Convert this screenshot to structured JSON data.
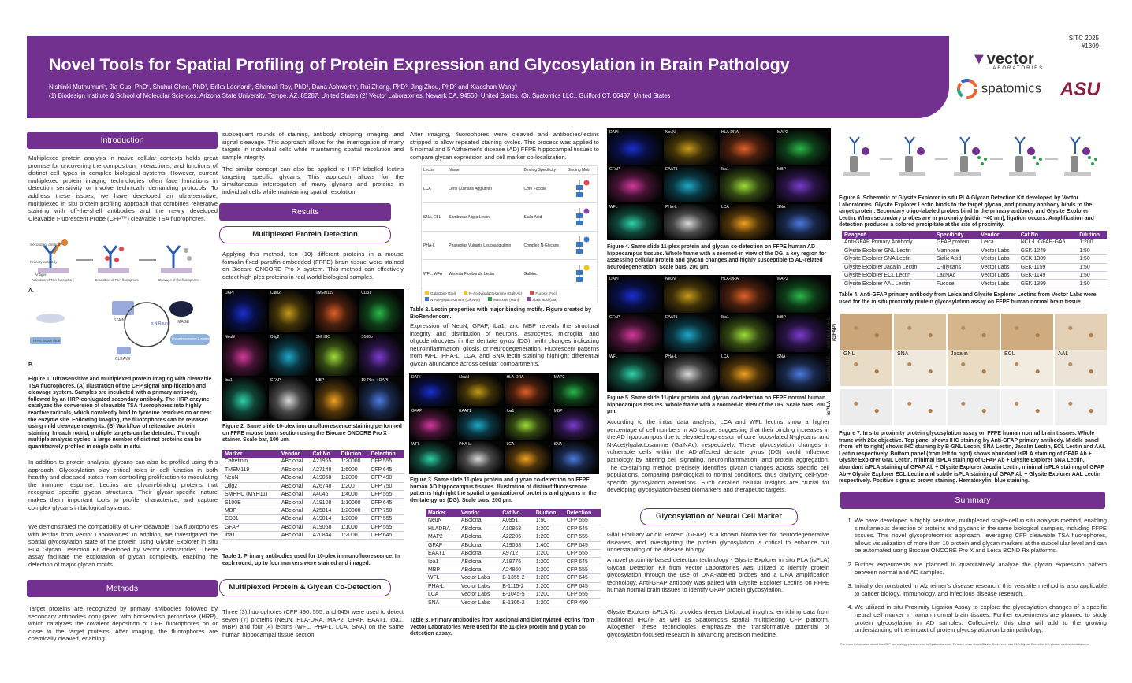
{
  "header": {
    "title": "Novel Tools for Spatial Profiling of Protein Expression and Glycosylation in Brain Pathology",
    "authors": "Nishinki Muthumuni¹, Jia Guo, PhD¹, Shuhui Chen, PhD², Erika Leonard², Shamali Roy, PhD², Dana Ashworth³, Rui Zheng, PhD³, Jing Zhou, PhD³ and Xiaoshan Wang³",
    "affiliations": "(1) Biodesign Institute & School of Molecular Sciences, Arizona State University, Tempe, AZ, 85287, United States (2) Vector Laboratories, Newark CA, 94560, United States, (3). Spatomics LLC., Guilford CT, 06437, United States",
    "conf": "SITC 2025",
    "poster_no": "#1309",
    "logo_vector": "vector",
    "logo_vector_sub": "LABORATORIES",
    "logo_spatomics": "spatomics",
    "logo_asu": "ASU"
  },
  "intro": {
    "heading": "Introduction",
    "p1": "Multiplexed protein analysis in native cellular contexts holds great promise for uncovering the composition, interactions, and functions of distinct cell types in complex biological systems. However, current multiplexed protein imaging technologies often face limitations in detection sensitivity or involve technically demanding protocols. To address these issues, we have developed an ultra-sensitive, multiplexed in situ protein profiling approach that combines reiterative staining with off-the-shelf antibodies and the newly developed Cleavable Fluorescent Probe (CFP™) cleavable TSA fluorophores.",
    "fig1_caption": "Figure 1. Ultrasensitive and multiplexed protein imaging with cleavable TSA fluorophores. (A) Illustration of the CFP signal amplification and cleavage system. Samples are incubated with a primary antibody, followed by an HRP-conjugated secondary antibody. The HRP enzyme catalyzes the conversion of cleavable TSA fluorophores into highly reactive radicals, which covalently bind to tyrosine residues on or near the enzyme site. Following imaging, the fluorophores can be released using mild cleavage reagents. (B) Workflow of reiterative protein staining. In each round, multiple targets can be detected. Through multiple analysis cycles, a large number of distinct proteins can be quantitatively profiled in single cells in situ.",
    "p2": "In addition to protein analysis, glycans can also be profiled using this approach. Glycosylation play critical roles in cell function in both healthy and diseased states from controlling proliferation to modulating the immune response. Lectins are glycan-binding proteins that recognize specific glycan structures. Their glycan-specific nature makes them important tools to profile, characterize, and capture complex glycans in biological systems.",
    "p3": "We demonstrated the compatibility of CFP cleavable TSA fluorophores with lectins from Vector Laboratories. In addition, we investigated the spatial glycosylation state of the protein using Glysite Explorer in situ PLA Glycan Detection Kit developed by Vector Laboratories. These assay facilitate the exploration of glycan complexity, enabling the detection of major glycan motifs.",
    "figA": "A.",
    "figB": "B.",
    "fig1_labels": {
      "ab_sec": "Secondary antibody",
      "ab_pri": "Primary antibody",
      "antigen": "Antigen",
      "step1": "Activation of TSA fluorophore",
      "step2": "Deposition of TSA fluorophore",
      "step3": "Cleavage of the fluorophore",
      "tissue": "FFPE tissue slide",
      "stain": "STAIN",
      "image": "IMAGE",
      "cleave": "CLEAVE",
      "rounds": "x N Round",
      "analysis": "Image processing & analysis"
    }
  },
  "methods": {
    "heading": "Methods",
    "p1": "Target proteins are recognized by primary antibodies followed by secondary antibodies conjugated with horseradish peroxidase (HRP), which catalyzes the covalent deposition of CFP fluorophores on or close to the target proteins. After imaging, the fluorophores are chemically cleaved, enabling",
    "p2": "subsequent rounds of staining, antibody stripping, imaging, and signal cleavage. This approach allows for the interrogation of many targets in individual cells while maintaining spatial resolution and sample integrity.",
    "p3": "The similar concept can also be applied to HRP-labelled lectins targeting specific glycans. This approach allows for the simultaneous interrogation of many glycans and proteins in individual cells while maintaining spatial resolution."
  },
  "results": {
    "heading": "Results",
    "sub1": "Multiplexed Protein Detection",
    "p1": "Applying this method, ten (10) different proteins in a mouse formalin-fixed paraffin-embedded (FFPE) brain tissue were stained on Biocare ONCORE Pro X system. This method can effectively detect high-plex proteins in real world biological samples.",
    "fig2_panels": [
      "DAPI",
      "Calb2",
      "TMEM119",
      "CD31",
      "NeuN",
      "Olig2",
      "SMHHC",
      "S100b",
      "Iba1",
      "GFAP",
      "MBP",
      "10-Plex + DAPI"
    ],
    "fig2_caption": "Figure 2. Same slide 10-plex immunofluorescence staining performed on FFPE mouse brain section using the Biocare ONCORE Pro X stainer. Scale bar, 100 μm.",
    "table1_headers": [
      "Marker",
      "Vendor",
      "Cat No.",
      "Dilution",
      "Detection"
    ],
    "table1_rows": [
      [
        "Calretinin",
        "ABclonal",
        "A21965",
        "1:20000",
        "CFP 555"
      ],
      [
        "TMEM119",
        "ABclonal",
        "A27148",
        "1:6000",
        "CFP 645"
      ],
      [
        "NeuN",
        "ABclonal",
        "A19068",
        "1:2000",
        "CFP 490"
      ],
      [
        "Olig2",
        "ABclonal",
        "A26748",
        "1:200",
        "CFP 750"
      ],
      [
        "SMHHC (MYH11)",
        "ABclonal",
        "A4046",
        "1:4000",
        "CFP 555"
      ],
      [
        "S100B",
        "ABclonal",
        "A19108",
        "1:10000",
        "CFP 645"
      ],
      [
        "MBP",
        "ABclonal",
        "A25814",
        "1:20000",
        "CFP 750"
      ],
      [
        "CD31",
        "ABclonal",
        "A19014",
        "1:2000",
        "CFP 555"
      ],
      [
        "GFAP",
        "ABclonal",
        "A19058",
        "1:1000",
        "CFP 555"
      ],
      [
        "Iba1",
        "ABclonal",
        "A20844",
        "1:2000",
        "CFP 645"
      ]
    ],
    "table1_caption": "Table 1. Primary antibodies used for 10-plex immunofluorescence. In each round, up to four markers were stained and imaged.",
    "sub2": "Multiplexed Protein & Glycan Co-Detection",
    "p2": "Three (3) fluorophores (CFP 490, 555, and 645) were used to detect seven (7) proteins (NeuN, HLA-DRA, MAP2, GFAP, EAAT1, Iba1, MBP) and four (4) lectins (WFL, PHA-L, LCA, SNA) on the same human hippocampal tissue section.",
    "p3": "After imaging, fluorophores were cleaved and antibodies/lectins stripped to allow repeated staining cycles. This process was applied to 5 normal and 5 Alzheimer's disease (AD) FFPE hippocampal tissues to compare glycan expression and cell marker co-localization.",
    "lectin_headers": [
      "Lectin",
      "Name",
      "Binding Specificity",
      "Binding Motif"
    ],
    "lectin_rows": [
      [
        "LCA",
        "Lens Culinaris Agglutinin",
        "Core Fucose"
      ],
      [
        "SNA, EBL",
        "Sambucus Nigra Lectin",
        "Sialic Acid"
      ],
      [
        "PHA-L",
        "Phaseolus Vulgaris Leucoagglutinin",
        "Complex N-Glycans"
      ],
      [
        "WFL, WFA",
        "Wisteria Floribunda Lectin",
        "GalNAc"
      ]
    ],
    "lectin_legend": [
      "Galactose (Gal)",
      "N-Acetylgalactosamine (GalNAc)",
      "Fucose (Fuc)",
      "N-Acetylglucosamine (GlcNAc)",
      "Mannose (Man)",
      "Sialic acid (Sia)"
    ],
    "table2_caption": "Table 2. Lectin properties with major binding motifs. Figure created by BioRender.com.",
    "p4": "Expression of NeuN, GFAP, Iba1, and MBP reveals the structural integrity and distribution of neurons, astrocytes, microglia, and oligodendrocytes in the dentate gyrus (DG), with changes indicating neuroinflammation, gliosis, or neurodegeneration. Fluorescent patterns from WFL, PHA-L, LCA, and SNA lectin staining highlight differential glycan abundance across cellular compartments.",
    "fig3_panels": [
      "DAPI",
      "NeuN",
      "HLA-DRA",
      "MAP2",
      "GFAP",
      "EAAT1",
      "Iba1",
      "MBP",
      "WFL",
      "PHA-L",
      "LCA",
      "SNA"
    ],
    "fig3_caption": "Figure 3. Same slide 11-plex protein and glycan co-detection on FFPE human AD hippocampus tissues. Illustration of distinct fluorescence patterns highlight the spatial organization of proteins and glycans in the dentate gyrus (DG). Scale bars, 200 μm.",
    "table3_headers": [
      "Marker",
      "Vendor",
      "Cat No.",
      "Dilution",
      "Detection"
    ],
    "table3_rows": [
      [
        "NeuN",
        "ABclonal",
        "A0951",
        "1:50",
        "CFP 555"
      ],
      [
        "HLADRA",
        "ABclonal",
        "A10863",
        "1:200",
        "CFP 645"
      ],
      [
        "MAP2",
        "ABclonal",
        "A22206",
        "1:200",
        "CFP 555"
      ],
      [
        "GFAP",
        "ABclonal",
        "A19058",
        "1:400",
        "CFP 645"
      ],
      [
        "EAAT1",
        "ABclonal",
        "A9712",
        "1:200",
        "CFP 555"
      ],
      [
        "Iba1",
        "ABclonal",
        "A19776",
        "1:200",
        "CFP 645"
      ],
      [
        "MBP",
        "ABclonal",
        "A24860",
        "1:200",
        "CFP 555"
      ],
      [
        "WFL",
        "Vector Labs",
        "B-1355-2",
        "1:200",
        "CFP 645"
      ],
      [
        "PHA-L",
        "Vector Labs",
        "B-1115-2",
        "1:200",
        "CFP 645"
      ],
      [
        "LCA",
        "Vector Labs",
        "B-1045-5",
        "1:200",
        "CFP 555"
      ],
      [
        "SNA",
        "Vector Labs",
        "B-1305-2",
        "1:200",
        "CFP 490"
      ]
    ],
    "table3_caption": "Table 3. Primary antibodies from ABclonal and biotinylated lectins from Vector Laboratories were used for the 11-plex protein and glycan co-detection assay.",
    "fig4_panels": [
      "DAPI",
      "NeuN",
      "HLA-DRA",
      "MAP2",
      "GFAP",
      "EAAT1",
      "Iba1",
      "MBP",
      "WFL",
      "PHA-L",
      "LCA",
      "SNA"
    ],
    "fig4_caption": "Figure 4. Same slide 11-plex protein and glycan co-detection on FFPE human AD hippocampus tissues. Whole frame with a zoomed-in view of the DG, a key region for assessing cellular protein and glycan changes and highly susceptible to AD-related neurodegeneration. Scale bars, 200 μm.",
    "fig5_panels": [
      "DAPI",
      "NeuN",
      "HLA-DRA",
      "MAP2",
      "GFAP",
      "EAAT1",
      "Iba1",
      "MBP",
      "WFL",
      "PHA-L",
      "LCA",
      "SNA"
    ],
    "fig5_caption": "Figure 5. Same slide 11-plex protein and glycan co-detection on FFPE normal human hippocampus tissues. Whole frame with a zoomed-in view of the DG. Scale bars, 200 μm.",
    "p5": "According to the initial data analysis, LCA and WFL lectins show a higher percentage of cell numbers in AD tissue, suggesting that their binding increases in the AD hippocampus due to elevated expression of core fucosylated N-glycans, and N-Acetylgalactosamine (GalNAc), respectively. These glycosylation changes in vulnerable cells within the AD-affected dentate gyrus (DG) could influence pathology by altering cell signaling, neuroinflammation, and protein aggregation. The co-staining method precisely identifies glycan changes across specific cell populations, comparing pathological to normal conditions, thus clarifying cell-type-specific glycosylation alterations. Such detailed cellular insights are crucial for developing glycosylation-based biomarkers and therapeutic targets.",
    "sub3": "Glycosylation of Neural Cell Marker",
    "p6": "Glial Fibrillary Acidic Protein (GFAP) is a known biomarker for neurodegenerative diseases, and investigating the protein glycosylation is critical to enhance our understanding of the disease biology.",
    "p7": "A novel proximity-based detection technology - Glysite Explorer in situ PLA (isPLA) Glycan Detection Kit from Vector Laboratories was utilized to identify protein glycosylation through the use of DNA-labeled probes and a DNA amplification technology. Anti-GFAP antibody was paired with Glysite Explorer Lectins on FFPE human normal brain tissues to identify GFAP protein glycosylation.",
    "p8": "Glysite Explorer isPLA Kit provides deeper biological insights, enriching data from traditional IHC/IF as well as Spatomics's spatial multiplexing CFP platform. Altogether, these technologies emphasize the transformative potential of glycosylation-focused research in advancing precision medicine.",
    "fig6_caption": "Figure 6. Schematic of Glysite Explorer in situ PLA Glycan Detection Kit developed by Vector Laboratories. Glysite Explorer Lectin binds to the target glycan, and primary antibody binds to the target protein. Secondary oligo-labeled probes bind to the primary antibody and Glysite Explorer Lectin. When secondary probes are in proximity (within ~40 nm), ligation occurs. Amplification and detection produces a colored precipitate at the site of proximity.",
    "table4_headers": [
      "Reagent",
      "Specificity",
      "Vendor",
      "Cat No.",
      "Dilution"
    ],
    "table4_rows": [
      [
        "Anti-GFAP Primary Antibody",
        "GFAP protein",
        "Leica",
        "NCL-L-GFAP-GA5",
        "1:200"
      ],
      [
        "Glysite Explorer GNL Lectin",
        "Mannose",
        "Vector Labs",
        "GEK-1249",
        "1:50"
      ],
      [
        "Glysite Explorer SNA Lectin",
        "Sialic Acid",
        "Vector Labs",
        "GEK-1309",
        "1:50"
      ],
      [
        "Glysite Explorer Jacalin Lectin",
        "O-glycans",
        "Vector Labs",
        "GEK-1159",
        "1:50"
      ],
      [
        "Glysite Explorer ECL Lectin",
        "LacNAc",
        "Vector Labs",
        "GEK-1149",
        "1:50"
      ],
      [
        "Glysite Explorer AAL Lectin",
        "Fucose",
        "Vector Labs",
        "GEK-1399",
        "1:50"
      ]
    ],
    "table4_caption": "Table 4. Anti-GFAP primary antibody from Leica and Glysite Explorer Lectins from Vector Labs were used for the in situ proximity protein glycosylation assay on FFPE human normal brain tissue.",
    "fig7_rowlabels": [
      "Antibody IHC (GFAP)",
      "Lectin IHC",
      "isPLA"
    ],
    "fig7_collabels": [
      "GNL",
      "SNA",
      "Jacalin",
      "ECL",
      "AAL"
    ],
    "fig7_caption": "Figure 7. In situ proximity protein glycosylation assay on FFPE human normal brain tissues. Whole frame with 20x objective. Top panel shows IHC staining by Anti-GFAP primary antibody. Middle panel (from left to right) shows IHC staining by B-GNL Lectin, SNA Lectin, Jacalin Lectin, ECL Lectin and AAL Lectin respectively. Bottom panel (from left to right) shows abundant isPLA staining of GFAP Ab + Glysite Explorer GNL Lectin, minimal isPLA staining of GFAP Ab + Glysite Explorer SNA Lectin, abundant isPLA staining of GFAP Ab + Glysite Explorer Jacalin Lectin, minimal isPLA staining of GFAP Ab + Glysite Explorer ECL Lectin and subtle isPLA staining of GFAP Ab + Glysite Explorer AAL Lectin respectively. Positive signals: brown staining. Hematoxylin: blue staining."
  },
  "summary": {
    "heading": "Summary",
    "items": [
      "We have developed a highly sensitive, multiplexed single-cell in situ analysis method, enabling simultaneous detection of proteins and glycans in the same biological samples, including FFPE tissues. This novel glycoproteomics approach, leveraging CFP cleavable TSA fluorophores, allows visualization of more than 10 protein and glycan markers at the subcellular level and can be automated using Biocare ONCORE Pro X and Leica BOND Rx platforms.",
      "Further experiments are planned to quantitatively analyze the glycan expression pattern between normal and AD samples.",
      "Initially demonstrated in Alzheimer's disease research, this versatile method is also applicable to cancer biology, immunology, and infectious disease research.",
      "We utilized in situ Proximity Ligation Assay to explore the glycosylation changes of a specific neural cell marker in human normal brain tissues. Further experiments are planned to study protein glycosylation in AD samples. Collectively, this data will add to the growing understanding of the impact of protein glycosylation on brain pathology."
    ],
    "footnote": "For more information about the CFP technology, please refer to Spatomics.com. To learn more about Glysite Explorer in situ PLA Glycan Detection Kit, please visit vectorlabs.com."
  },
  "colors": {
    "purple": "#72308f",
    "brand_asu": "#8c1d40"
  }
}
